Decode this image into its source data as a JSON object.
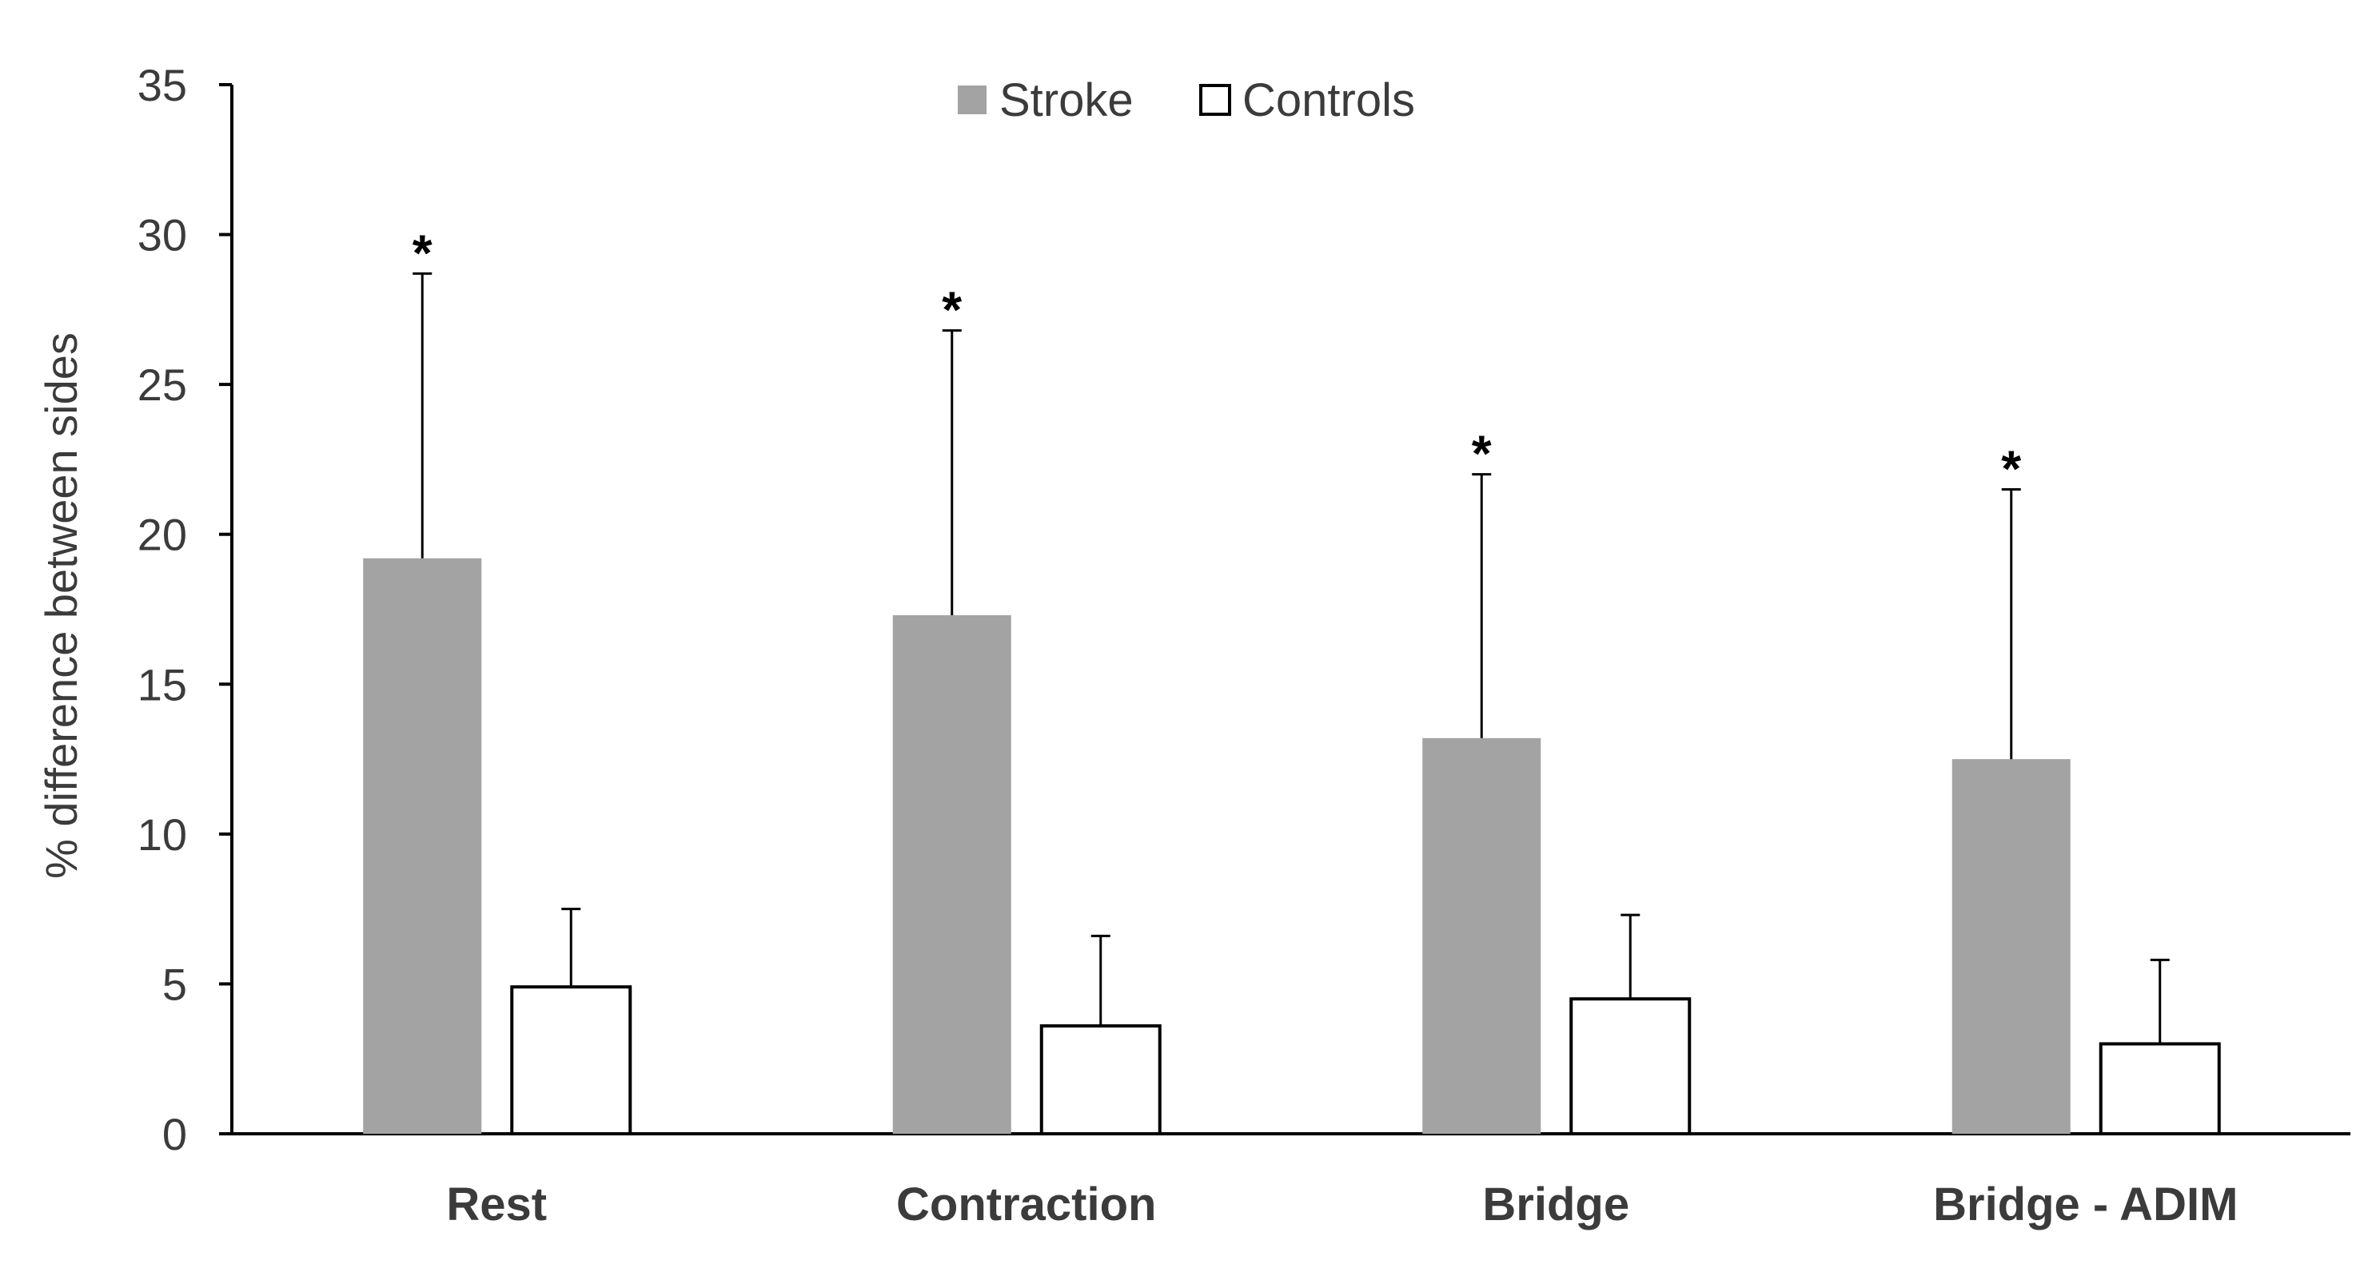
{
  "chart_data": {
    "type": "bar",
    "title": "",
    "xlabel": "",
    "ylabel": "% difference between sides",
    "ylim": [
      0,
      35
    ],
    "yticks": [
      0,
      5,
      10,
      15,
      20,
      25,
      30,
      35
    ],
    "ytick_labels": [
      "0",
      "5",
      "10",
      "15",
      "20",
      "25",
      "30",
      "35"
    ],
    "grid": false,
    "legend_position": "top-center",
    "categories": [
      "Rest",
      "Contraction",
      "Bridge",
      "Bridge - ADIM"
    ],
    "series": [
      {
        "name": "Stroke",
        "values": [
          19.2,
          17.3,
          13.2,
          12.5
        ],
        "error": [
          9.5,
          9.5,
          8.8,
          9.0
        ],
        "fill": "#a3a3a3",
        "stroke": "none",
        "significance": [
          "*",
          "*",
          "*",
          "*"
        ]
      },
      {
        "name": "Controls",
        "values": [
          4.9,
          3.6,
          4.5,
          3.0
        ],
        "error": [
          2.6,
          3.0,
          2.8,
          2.8
        ],
        "fill": "#ffffff",
        "stroke": "#000000",
        "significance": [
          "",
          "",
          "",
          ""
        ]
      }
    ],
    "colors": {
      "axis": "#000000",
      "text": "#3b3b3b",
      "errorbar": "#000000"
    }
  }
}
